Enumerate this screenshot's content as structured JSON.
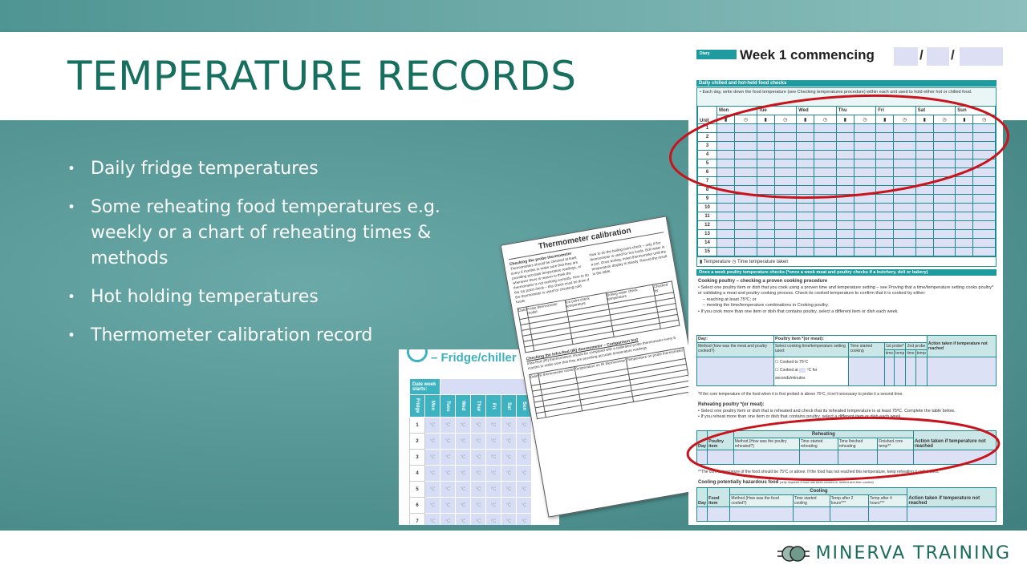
{
  "slide": {
    "title": "TEMPERATURE RECORDS",
    "bullets": [
      "Daily fridge temperatures",
      "Some reheating food temperatures e.g. weekly or a chart of reheating times & methods",
      "Hot holding temperatures",
      "Thermometer calibration record"
    ]
  },
  "brand": {
    "name": "MINERVA TRAINING",
    "color": "#1b6b5a",
    "accent": "#1f9a9e",
    "highlight": "#c8141c"
  },
  "fridge_doc": {
    "title": "– Fridge/chiller",
    "date_label": "Date week starts:",
    "headers": [
      "Fridge",
      "Mon",
      "Tues",
      "Wed",
      "Thur",
      "Fri",
      "Sat",
      "Sun"
    ],
    "rows": [
      "1",
      "2",
      "3",
      "4",
      "5",
      "6",
      "7"
    ],
    "unit": "°C"
  },
  "therm_doc": {
    "title": "Thermometer calibration",
    "heading": "Checking the probe thermometer",
    "text1": "Thermometers should be checked at least every 6 months to make sure that they are providing accurate temperature readings, or whenever there is reason to think the thermometer is not working correctly. How to do the ice point check – this check must be done if the thermometer is used for checking cold foods.",
    "text2": "How to do the boiling point check – only if the thermometer is used for hot foods. Boil water in a pot. Once boiling, insert thermometer until the temperature display is steady. Record the result in the table.",
    "cols": [
      "Date",
      "Probe thermometer model",
      "Ice point check temperature",
      "Boiling water check temperature",
      "Checked by"
    ],
    "heading2": "Checking the Infra-Red (IR) thermometer – Comparison test",
    "text3": "Infra-Red (IR) thermometers should be compared with a calibrated probe thermometer every 6 months to make sure that they are providing accurate temperature readings.",
    "cols2": [
      "Date",
      "IR thermometer model",
      "Temperature on IR thermometer",
      "Temperature on probe thermometer"
    ]
  },
  "diary": {
    "tag": "Diary",
    "title": "Week 1 commencing",
    "sep": "/",
    "section1": "Daily chilled and hot-held food checks",
    "instruction1": "• Each day, write down the food temperature (see Checking temperatures procedure) within each unit used to hold either hot or chilled food.",
    "unit_label": "Unit",
    "days": [
      "Mon",
      "Tue",
      "Wed",
      "Thu",
      "Fri",
      "Sat",
      "Sun"
    ],
    "units": [
      "1",
      "2",
      "3",
      "4",
      "5",
      "6",
      "7",
      "8",
      "9",
      "10",
      "11",
      "12",
      "13",
      "14",
      "15"
    ],
    "legend": "Temperature  ◷ Time temperature taken",
    "section2": "Once a week poultry temperature checks (*once a week meat and poultry checks if a butchery, deli or bakery)",
    "cooking_heading": "Cooking poultry – checking a proven cooking procedure",
    "cooking_text": "• Select one poultry item or dish that you cook using a proven time and temperature setting – see Proving that a time/temperature setting cooks poultry* or validating a meat and poultry cooking process. Check its cooked temperature to confirm that it is cooked by either:",
    "cooking_opt1": "– reaching at least 75ºC; or",
    "cooking_opt2": "– meeting the time/temperature combinations in Cooking poultry.",
    "cooking_text2": "• If you cook more than one item or dish that contains poultry, select a different item or dish each week.",
    "cook_table": {
      "day": "Day:",
      "item": "Poultry item *(or meat):",
      "method": "Method (how was the meat and poultry cooked?)",
      "setting": "Select cooking time/temperature setting used:",
      "started": "Time started cooking",
      "probe1": "1st probe*",
      "probe2": "2nd probe",
      "time": "time",
      "temp": "temp",
      "action": "Action taken if temperature not reached",
      "opt1": "Cooked to 75ºC",
      "opt2": "Cooked at",
      "opt2b": "ºC for",
      "opt2c": "seconds/minutes"
    },
    "cook_note": "*If the core temperature of the food when it is first probed is above 75ºC, it isn't necessary to probe it a second time.",
    "reheat_heading": "Reheating poultry *(or meat):",
    "reheat_text1": "• Select one poultry item or dish that is reheated and check that its reheated temperature is at least 75ºC. Complete the table below.",
    "reheat_text2": "• If you reheat more than one item or dish that contains poultry, select a different item or dish each week.",
    "reheat_table": {
      "day": "Day",
      "item": "Poultry item",
      "group": "Reheating",
      "method": "Method (How was the poultry reheated?)",
      "started": "Time started reheating",
      "finished": "Time finished reheating",
      "core": "Finished core temp**",
      "action": "Action taken if temperature not reached"
    },
    "reheat_note": "**The core temperature of the food should be 75ºC or above. If the food has not reached this temperature, keep reheating it until it does.",
    "cooling_heading": "Cooling potentially hazardous food",
    "cooling_sub": "(only required if food has been cooked or heated and then cooled)",
    "cooling_table": {
      "day": "Day",
      "item": "Food item",
      "group": "Cooling",
      "method": "Method (How was the food cooled?)",
      "started": "Time started cooling",
      "t2": "Temp after 2 hours***",
      "t4": "Temp after 4 hours***",
      "action": "Action taken if temperature not reached"
    }
  }
}
